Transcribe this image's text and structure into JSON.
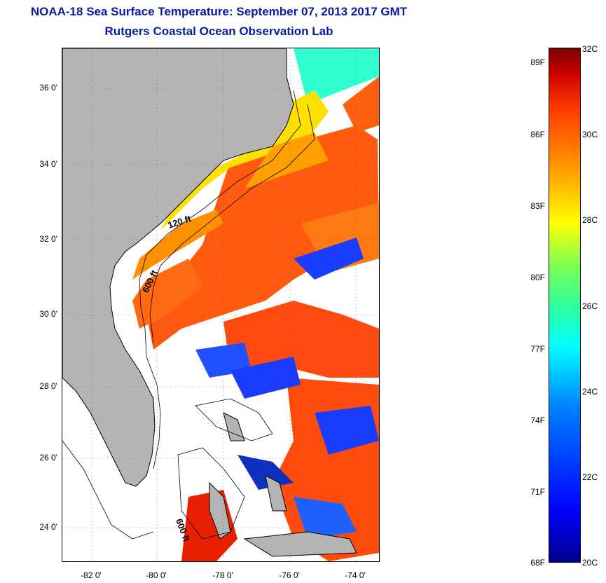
{
  "header": {
    "title": "NOAA-18 Sea Surface Temperature:  September 07, 2013 2017 GMT",
    "subtitle": "Rutgers Coastal Ocean Observation Lab"
  },
  "map": {
    "lat_ticks": [
      "36 0'",
      "34 0'",
      "32 0'",
      "30 0'",
      "28 0'",
      "26 0'",
      "24 0'"
    ],
    "lon_ticks": [
      "-82 0'",
      "-80 0'",
      "-78 0'",
      "-76 0'",
      "-74 0'"
    ],
    "contour_labels": [
      "120 ft",
      "600 ft",
      "600 ft"
    ],
    "colors": {
      "land": "#b4b4b4",
      "ocean_warm": "#ff4a10",
      "ocean_hot": "#e82000",
      "ocean_mid": "#ff9a00",
      "ocean_cool": "#ffe000",
      "ocean_cold": "#1a3cff"
    }
  },
  "colorbar": {
    "fahrenheit": [
      "89F",
      "86F",
      "83F",
      "80F",
      "77F",
      "74F",
      "71F",
      "68F"
    ],
    "celsius": [
      "32C",
      "30C",
      "28C",
      "26C",
      "24C",
      "22C",
      "20C"
    ]
  }
}
